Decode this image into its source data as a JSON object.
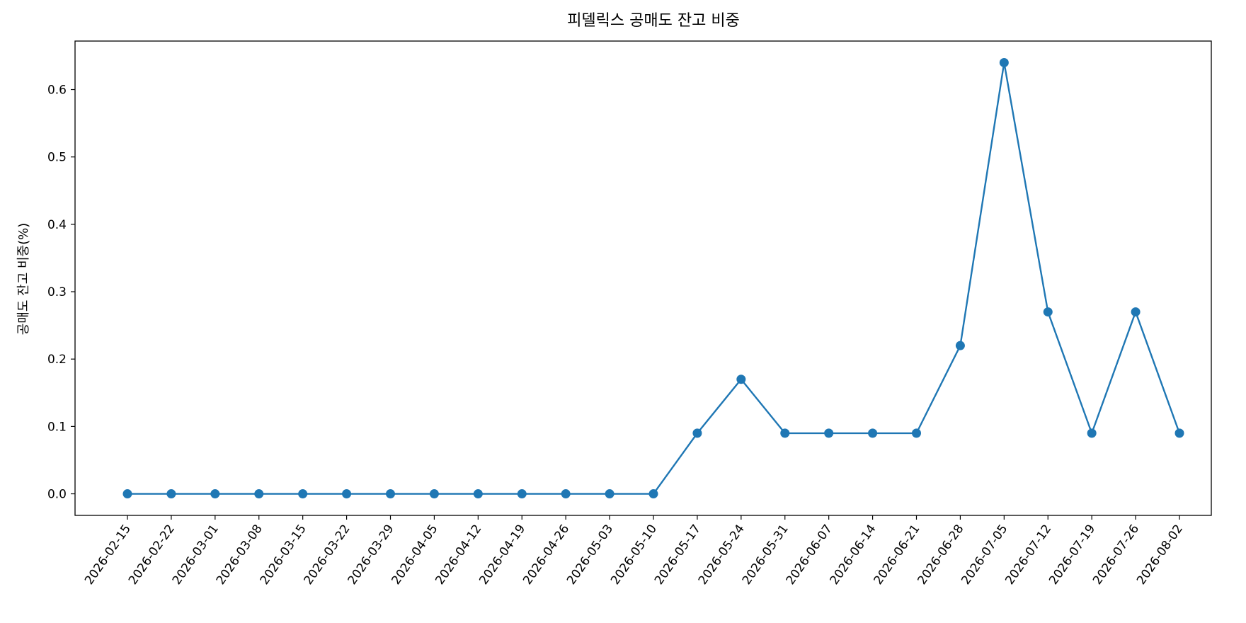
{
  "chart_data": {
    "type": "line",
    "title": "피델릭스 공매도 잔고 비중",
    "xlabel": "",
    "ylabel": "공매도 잔고 비중(%)",
    "x": [
      "2026-02-15",
      "2026-02-22",
      "2026-03-01",
      "2026-03-08",
      "2026-03-15",
      "2026-03-22",
      "2026-03-29",
      "2026-04-05",
      "2026-04-12",
      "2026-04-19",
      "2026-04-26",
      "2026-05-03",
      "2026-05-10",
      "2026-05-17",
      "2026-05-24",
      "2026-05-31",
      "2026-06-07",
      "2026-06-14",
      "2026-06-21",
      "2026-06-28",
      "2026-07-05",
      "2026-07-12",
      "2026-07-19",
      "2026-07-26",
      "2026-08-02"
    ],
    "series": [
      {
        "color": "#1f77b4",
        "values": [
          0,
          0,
          0,
          0,
          0,
          0,
          0,
          0,
          0,
          0,
          0,
          0,
          0,
          0.09,
          0.17,
          0.09,
          0.09,
          0.09,
          0.09,
          0.22,
          0.64,
          0.27,
          0.09,
          0.27,
          0.09
        ]
      }
    ],
    "yticks": [
      "0.0",
      "0.1",
      "0.2",
      "0.3",
      "0.4",
      "0.5",
      "0.6"
    ],
    "ylim": [
      -0.032,
      0.672
    ],
    "grid": false,
    "legend": "none",
    "marker": "circle"
  }
}
